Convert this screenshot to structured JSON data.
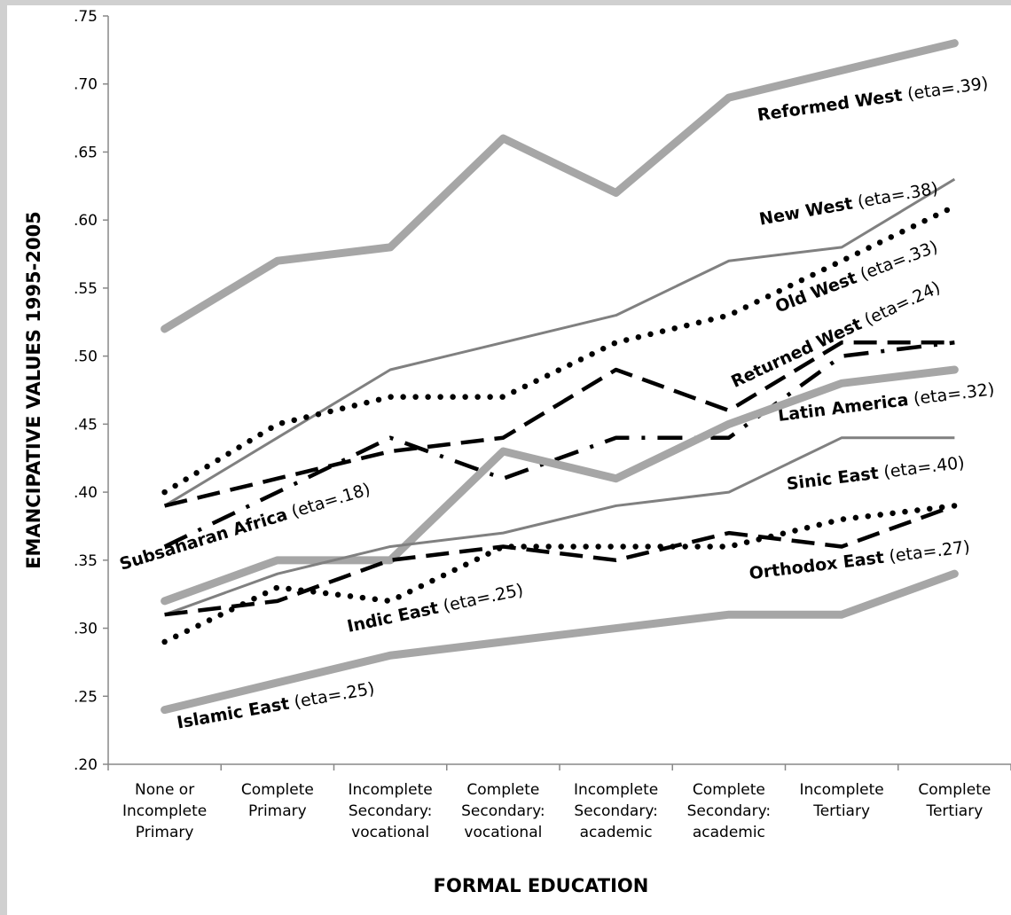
{
  "chart_data": {
    "type": "line",
    "ylabel": "EMANCIPATIVE  VALUES 1995-2005",
    "xlabel": "FORMAL EDUCATION",
    "categories": [
      "None or\nIncomplete\nPrimary",
      "Complete\nPrimary",
      "Incomplete\nSecondary:\nvocational",
      "Complete\nSecondary:\nvocational",
      "Incomplete\nSecondary:\nacademic",
      "Complete\nSecondary:\nacademic",
      "Incomplete\nTertiary",
      "Complete\nTertiary"
    ],
    "ylim": [
      0.2,
      0.75
    ],
    "yticks": [
      {
        "value": 0.2,
        "label": ".20"
      },
      {
        "value": 0.25,
        "label": ".25"
      },
      {
        "value": 0.3,
        "label": ".30"
      },
      {
        "value": 0.35,
        "label": ".35"
      },
      {
        "value": 0.4,
        "label": ".40"
      },
      {
        "value": 0.45,
        "label": ".45"
      },
      {
        "value": 0.5,
        "label": ".50"
      },
      {
        "value": 0.55,
        "label": ".55"
      },
      {
        "value": 0.6,
        "label": ".60"
      },
      {
        "value": 0.65,
        "label": ".65"
      },
      {
        "value": 0.7,
        "label": ".70"
      },
      {
        "value": 0.75,
        "label": ".75"
      }
    ],
    "grid": false,
    "series": [
      {
        "name": "Reformed West",
        "label": "(eta=.39)",
        "color": "#a6a6a6",
        "style": "thick",
        "values": [
          0.52,
          0.57,
          0.58,
          0.66,
          0.62,
          0.69,
          0.71,
          0.73
        ]
      },
      {
        "name": "New West",
        "label": "(eta=.38)",
        "color": "#808080",
        "style": "thin",
        "values": [
          0.39,
          0.44,
          0.49,
          0.51,
          0.53,
          0.57,
          0.58,
          0.63
        ]
      },
      {
        "name": "Old West",
        "label": "(eta=.33)",
        "color": "#000000",
        "style": "dotted",
        "values": [
          0.4,
          0.45,
          0.47,
          0.47,
          0.51,
          0.53,
          0.57,
          0.61
        ]
      },
      {
        "name": "Returned West",
        "label": "(eta=.24)",
        "color": "#000000",
        "style": "dashed",
        "values": [
          0.39,
          0.41,
          0.43,
          0.44,
          0.49,
          0.46,
          0.51,
          0.51
        ]
      },
      {
        "name": "Latin America",
        "label": "(eta=.32)",
        "color": "#000000",
        "style": "dashdot",
        "values": [
          0.36,
          0.4,
          0.44,
          0.41,
          0.44,
          0.44,
          0.5,
          0.51
        ]
      },
      {
        "name": "Sinic East",
        "label": "(eta=.40)",
        "color": "#a6a6a6",
        "style": "thick",
        "values": [
          0.32,
          0.35,
          0.35,
          0.43,
          0.41,
          0.45,
          0.48,
          0.49
        ]
      },
      {
        "name": "Orthodox East",
        "label": "(eta=.27)",
        "color": "#808080",
        "style": "thin",
        "values": [
          0.31,
          0.34,
          0.36,
          0.37,
          0.39,
          0.4,
          0.44,
          0.44
        ]
      },
      {
        "name": "Indic East",
        "label": "(eta=.25)",
        "color": "#000000",
        "style": "dotted",
        "values": [
          0.29,
          0.33,
          0.32,
          0.36,
          0.36,
          0.36,
          0.38,
          0.39
        ]
      },
      {
        "name": "Subsaharan Africa",
        "label": "(eta=.18)",
        "color": "#000000",
        "style": "dashed",
        "values": [
          0.31,
          0.32,
          0.35,
          0.36,
          0.35,
          0.37,
          0.36,
          0.39
        ]
      },
      {
        "name": "Islamic East",
        "label": "(eta=.25)",
        "color": "#a6a6a6",
        "style": "thick",
        "values": [
          0.24,
          0.26,
          0.28,
          0.29,
          0.3,
          0.31,
          0.31,
          0.34
        ]
      }
    ]
  }
}
